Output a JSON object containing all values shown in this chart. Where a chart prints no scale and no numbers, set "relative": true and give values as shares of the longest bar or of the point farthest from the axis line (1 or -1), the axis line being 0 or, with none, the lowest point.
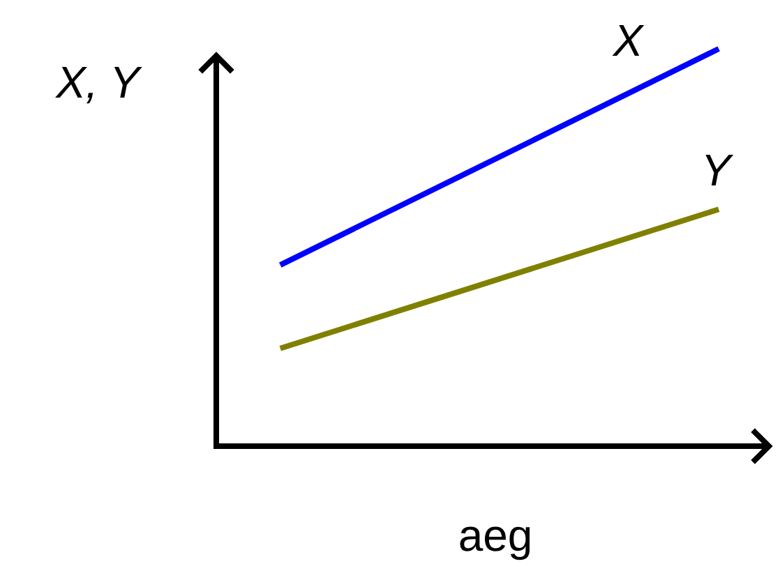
{
  "chart_data": {
    "type": "line",
    "relative": true,
    "xlabel": "aeg",
    "ylabel": "X, Y",
    "categories": [
      null,
      null
    ],
    "legend": false,
    "marker": "none",
    "line_style": "solid",
    "series": [
      {
        "name": "X",
        "color": "#0000ff",
        "values": [
          0.456,
          1
        ]
      },
      {
        "name": "Y",
        "color": "#808000",
        "values": [
          0.246,
          0.596
        ]
      }
    ]
  }
}
